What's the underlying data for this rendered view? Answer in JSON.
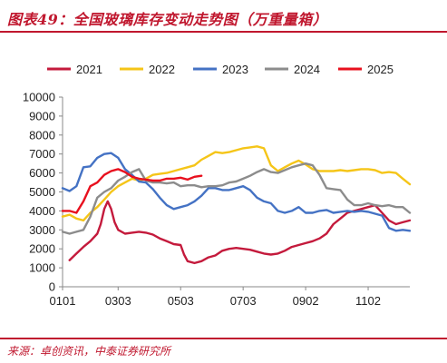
{
  "figure": {
    "title": "图表49：全国玻璃库存变动走势图（万重量箱）",
    "source": "来源：卓创资讯，中泰证券研究所"
  },
  "chart_data": {
    "type": "line",
    "xlabel": "",
    "ylabel": "",
    "xlim": [
      1,
      51
    ],
    "ylim": [
      0,
      10000
    ],
    "grid": false,
    "legend": "top",
    "x_ticks": [
      {
        "week": 1,
        "label": "0101"
      },
      {
        "week": 9,
        "label": "0303"
      },
      {
        "week": 18,
        "label": "0503"
      },
      {
        "week": 27,
        "label": "0703"
      },
      {
        "week": 36,
        "label": "0902"
      },
      {
        "week": 45,
        "label": "1102"
      }
    ],
    "y_ticks": [
      0,
      1000,
      2000,
      3000,
      4000,
      5000,
      6000,
      7000,
      8000,
      9000,
      10000
    ],
    "series": [
      {
        "name": "2021",
        "color": "#c41a3c",
        "points": [
          [
            2,
            1400
          ],
          [
            3,
            1750
          ],
          [
            4,
            2100
          ],
          [
            5,
            2400
          ],
          [
            6,
            2800
          ],
          [
            6.5,
            3300
          ],
          [
            7,
            4100
          ],
          [
            7.5,
            4500
          ],
          [
            8,
            4100
          ],
          [
            8.5,
            3400
          ],
          [
            9,
            3000
          ],
          [
            10,
            2800
          ],
          [
            11,
            2850
          ],
          [
            12,
            2900
          ],
          [
            13,
            2850
          ],
          [
            14,
            2750
          ],
          [
            15,
            2550
          ],
          [
            16,
            2400
          ],
          [
            17,
            2250
          ],
          [
            18,
            2200
          ],
          [
            18.5,
            1700
          ],
          [
            19,
            1350
          ],
          [
            20,
            1250
          ],
          [
            21,
            1350
          ],
          [
            22,
            1550
          ],
          [
            23,
            1650
          ],
          [
            24,
            1900
          ],
          [
            25,
            2000
          ],
          [
            26,
            2050
          ],
          [
            27,
            2000
          ],
          [
            28,
            1950
          ],
          [
            29,
            1850
          ],
          [
            30,
            1750
          ],
          [
            31,
            1700
          ],
          [
            32,
            1750
          ],
          [
            33,
            1900
          ],
          [
            34,
            2100
          ],
          [
            35,
            2200
          ],
          [
            36,
            2300
          ],
          [
            37,
            2400
          ],
          [
            38,
            2550
          ],
          [
            39,
            2800
          ],
          [
            40,
            3300
          ],
          [
            41,
            3600
          ],
          [
            42,
            3900
          ],
          [
            43,
            4000
          ],
          [
            44,
            4100
          ],
          [
            45,
            4200
          ],
          [
            46,
            4300
          ],
          [
            47,
            3900
          ],
          [
            48,
            3500
          ],
          [
            49,
            3300
          ],
          [
            50,
            3400
          ],
          [
            51,
            3500
          ]
        ]
      },
      {
        "name": "2022",
        "color": "#f5c518",
        "points": [
          [
            1,
            3700
          ],
          [
            2,
            3800
          ],
          [
            3,
            3600
          ],
          [
            4,
            3500
          ],
          [
            5,
            3900
          ],
          [
            6,
            4200
          ],
          [
            7,
            4600
          ],
          [
            8,
            5000
          ],
          [
            9,
            5300
          ],
          [
            10,
            5500
          ],
          [
            11,
            5700
          ],
          [
            12,
            5600
          ],
          [
            13,
            5700
          ],
          [
            14,
            5900
          ],
          [
            15,
            5950
          ],
          [
            16,
            6000
          ],
          [
            17,
            6100
          ],
          [
            18,
            6200
          ],
          [
            19,
            6300
          ],
          [
            20,
            6400
          ],
          [
            21,
            6700
          ],
          [
            22,
            6900
          ],
          [
            23,
            7100
          ],
          [
            24,
            7050
          ],
          [
            25,
            7100
          ],
          [
            26,
            7200
          ],
          [
            27,
            7300
          ],
          [
            28,
            7350
          ],
          [
            29,
            7400
          ],
          [
            30,
            7300
          ],
          [
            31,
            6400
          ],
          [
            32,
            6100
          ],
          [
            33,
            6300
          ],
          [
            34,
            6500
          ],
          [
            35,
            6650
          ],
          [
            36,
            6450
          ],
          [
            37,
            6200
          ],
          [
            38,
            6100
          ],
          [
            39,
            6100
          ],
          [
            40,
            6100
          ],
          [
            41,
            6150
          ],
          [
            42,
            6100
          ],
          [
            43,
            6150
          ],
          [
            44,
            6200
          ],
          [
            45,
            6200
          ],
          [
            46,
            6150
          ],
          [
            47,
            6000
          ],
          [
            48,
            6050
          ],
          [
            49,
            6000
          ],
          [
            50,
            5700
          ],
          [
            51,
            5400
          ]
        ]
      },
      {
        "name": "2023",
        "color": "#4472c4",
        "points": [
          [
            1,
            5200
          ],
          [
            2,
            5050
          ],
          [
            3,
            5300
          ],
          [
            4,
            6300
          ],
          [
            5,
            6350
          ],
          [
            6,
            6800
          ],
          [
            7,
            7000
          ],
          [
            8,
            7050
          ],
          [
            9,
            6800
          ],
          [
            10,
            6200
          ],
          [
            11,
            5900
          ],
          [
            12,
            5550
          ],
          [
            13,
            5500
          ],
          [
            14,
            5150
          ],
          [
            15,
            4700
          ],
          [
            16,
            4300
          ],
          [
            17,
            4100
          ],
          [
            18,
            4200
          ],
          [
            19,
            4300
          ],
          [
            20,
            4500
          ],
          [
            21,
            4800
          ],
          [
            22,
            5200
          ],
          [
            23,
            5200
          ],
          [
            24,
            5100
          ],
          [
            25,
            5100
          ],
          [
            26,
            5200
          ],
          [
            27,
            5300
          ],
          [
            28,
            5100
          ],
          [
            29,
            4700
          ],
          [
            30,
            4500
          ],
          [
            31,
            4400
          ],
          [
            32,
            4000
          ],
          [
            33,
            3900
          ],
          [
            34,
            4000
          ],
          [
            35,
            4200
          ],
          [
            36,
            3900
          ],
          [
            37,
            3900
          ],
          [
            38,
            4000
          ],
          [
            39,
            4050
          ],
          [
            40,
            3900
          ],
          [
            41,
            3950
          ],
          [
            42,
            4000
          ],
          [
            43,
            3950
          ],
          [
            44,
            4000
          ],
          [
            45,
            3950
          ],
          [
            46,
            3850
          ],
          [
            47,
            3750
          ],
          [
            48,
            3100
          ],
          [
            49,
            2950
          ],
          [
            50,
            3000
          ],
          [
            51,
            2950
          ]
        ]
      },
      {
        "name": "2024",
        "color": "#8c8c8c",
        "points": [
          [
            1,
            2900
          ],
          [
            2,
            2800
          ],
          [
            3,
            2900
          ],
          [
            4,
            3000
          ],
          [
            5,
            3700
          ],
          [
            6,
            4700
          ],
          [
            7,
            5000
          ],
          [
            8,
            5200
          ],
          [
            9,
            5600
          ],
          [
            10,
            5800
          ],
          [
            11,
            6050
          ],
          [
            12,
            6200
          ],
          [
            13,
            5600
          ],
          [
            14,
            5500
          ],
          [
            15,
            5500
          ],
          [
            16,
            5450
          ],
          [
            17,
            5500
          ],
          [
            18,
            5300
          ],
          [
            19,
            5350
          ],
          [
            20,
            5350
          ],
          [
            21,
            5250
          ],
          [
            22,
            5300
          ],
          [
            23,
            5300
          ],
          [
            24,
            5350
          ],
          [
            25,
            5500
          ],
          [
            26,
            5550
          ],
          [
            27,
            5700
          ],
          [
            28,
            5850
          ],
          [
            29,
            6050
          ],
          [
            30,
            6200
          ],
          [
            31,
            6050
          ],
          [
            32,
            6000
          ],
          [
            33,
            6150
          ],
          [
            34,
            6300
          ],
          [
            35,
            6400
          ],
          [
            36,
            6500
          ],
          [
            37,
            6400
          ],
          [
            38,
            5900
          ],
          [
            39,
            5200
          ],
          [
            40,
            5150
          ],
          [
            41,
            5100
          ],
          [
            42,
            4600
          ],
          [
            43,
            4300
          ],
          [
            44,
            4300
          ],
          [
            45,
            4400
          ],
          [
            46,
            4300
          ],
          [
            47,
            4250
          ],
          [
            48,
            4300
          ],
          [
            49,
            4200
          ],
          [
            50,
            4200
          ],
          [
            51,
            3900
          ]
        ]
      },
      {
        "name": "2025",
        "color": "#e8101e",
        "points": [
          [
            1,
            4000
          ],
          [
            2,
            4000
          ],
          [
            3,
            3900
          ],
          [
            4,
            4500
          ],
          [
            5,
            5300
          ],
          [
            6,
            5500
          ],
          [
            7,
            5900
          ],
          [
            8,
            6100
          ],
          [
            9,
            6200
          ],
          [
            10,
            6050
          ],
          [
            11,
            5800
          ],
          [
            12,
            5700
          ],
          [
            13,
            5650
          ],
          [
            14,
            5600
          ],
          [
            15,
            5600
          ],
          [
            16,
            5700
          ],
          [
            17,
            5700
          ],
          [
            18,
            5750
          ],
          [
            19,
            5650
          ],
          [
            20,
            5800
          ],
          [
            21,
            5850
          ]
        ]
      }
    ]
  }
}
